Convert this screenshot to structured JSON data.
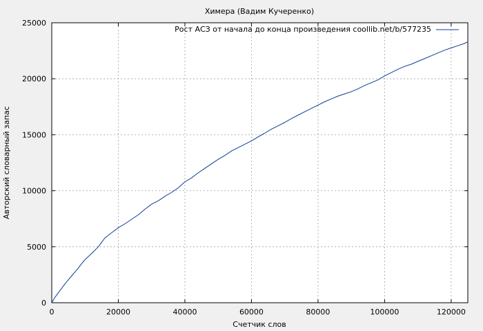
{
  "chart_data": {
    "type": "line",
    "title": "Химера (Вадим Кучеренко)",
    "xlabel": "Счетчик слов",
    "ylabel": "Авторский словарный запас",
    "xlim": [
      0,
      125000
    ],
    "ylim": [
      0,
      25000
    ],
    "xticks": [
      0,
      20000,
      40000,
      60000,
      80000,
      100000,
      120000
    ],
    "yticks": [
      0,
      5000,
      10000,
      15000,
      20000,
      25000
    ],
    "grid": true,
    "legend_position": "top-right",
    "series": [
      {
        "name": "Рост АСЗ от начала до конца произведения coollib.net/b/577235",
        "color": "#0b3d91",
        "x": [
          0,
          1000,
          2000,
          3000,
          4000,
          5000,
          6000,
          7000,
          8000,
          9000,
          10000,
          12000,
          14000,
          16000,
          18000,
          20000,
          22000,
          24000,
          26000,
          28000,
          30000,
          32000,
          34000,
          36000,
          38000,
          40000,
          42000,
          44000,
          46000,
          48000,
          50000,
          52000,
          54000,
          56000,
          58000,
          60000,
          62000,
          64000,
          66000,
          68000,
          70000,
          72000,
          74000,
          76000,
          78000,
          80000,
          82000,
          84000,
          86000,
          88000,
          90000,
          92000,
          94000,
          96000,
          98000,
          100000,
          102000,
          104000,
          106000,
          108000,
          110000,
          112000,
          114000,
          116000,
          118000,
          120000,
          122000,
          124000,
          125000
        ],
        "y": [
          0,
          500,
          900,
          1300,
          1700,
          2050,
          2400,
          2750,
          3100,
          3500,
          3850,
          4400,
          5000,
          5800,
          6250,
          6700,
          7050,
          7450,
          7850,
          8350,
          8800,
          9100,
          9500,
          9850,
          10250,
          10800,
          11150,
          11600,
          12000,
          12400,
          12800,
          13150,
          13550,
          13850,
          14150,
          14450,
          14800,
          15150,
          15500,
          15800,
          16100,
          16450,
          16750,
          17050,
          17350,
          17650,
          17950,
          18200,
          18450,
          18650,
          18850,
          19100,
          19400,
          19650,
          19900,
          20250,
          20550,
          20850,
          21100,
          21300,
          21550,
          21800,
          22050,
          22300,
          22550,
          22750,
          22950,
          23150,
          23300
        ]
      }
    ]
  }
}
